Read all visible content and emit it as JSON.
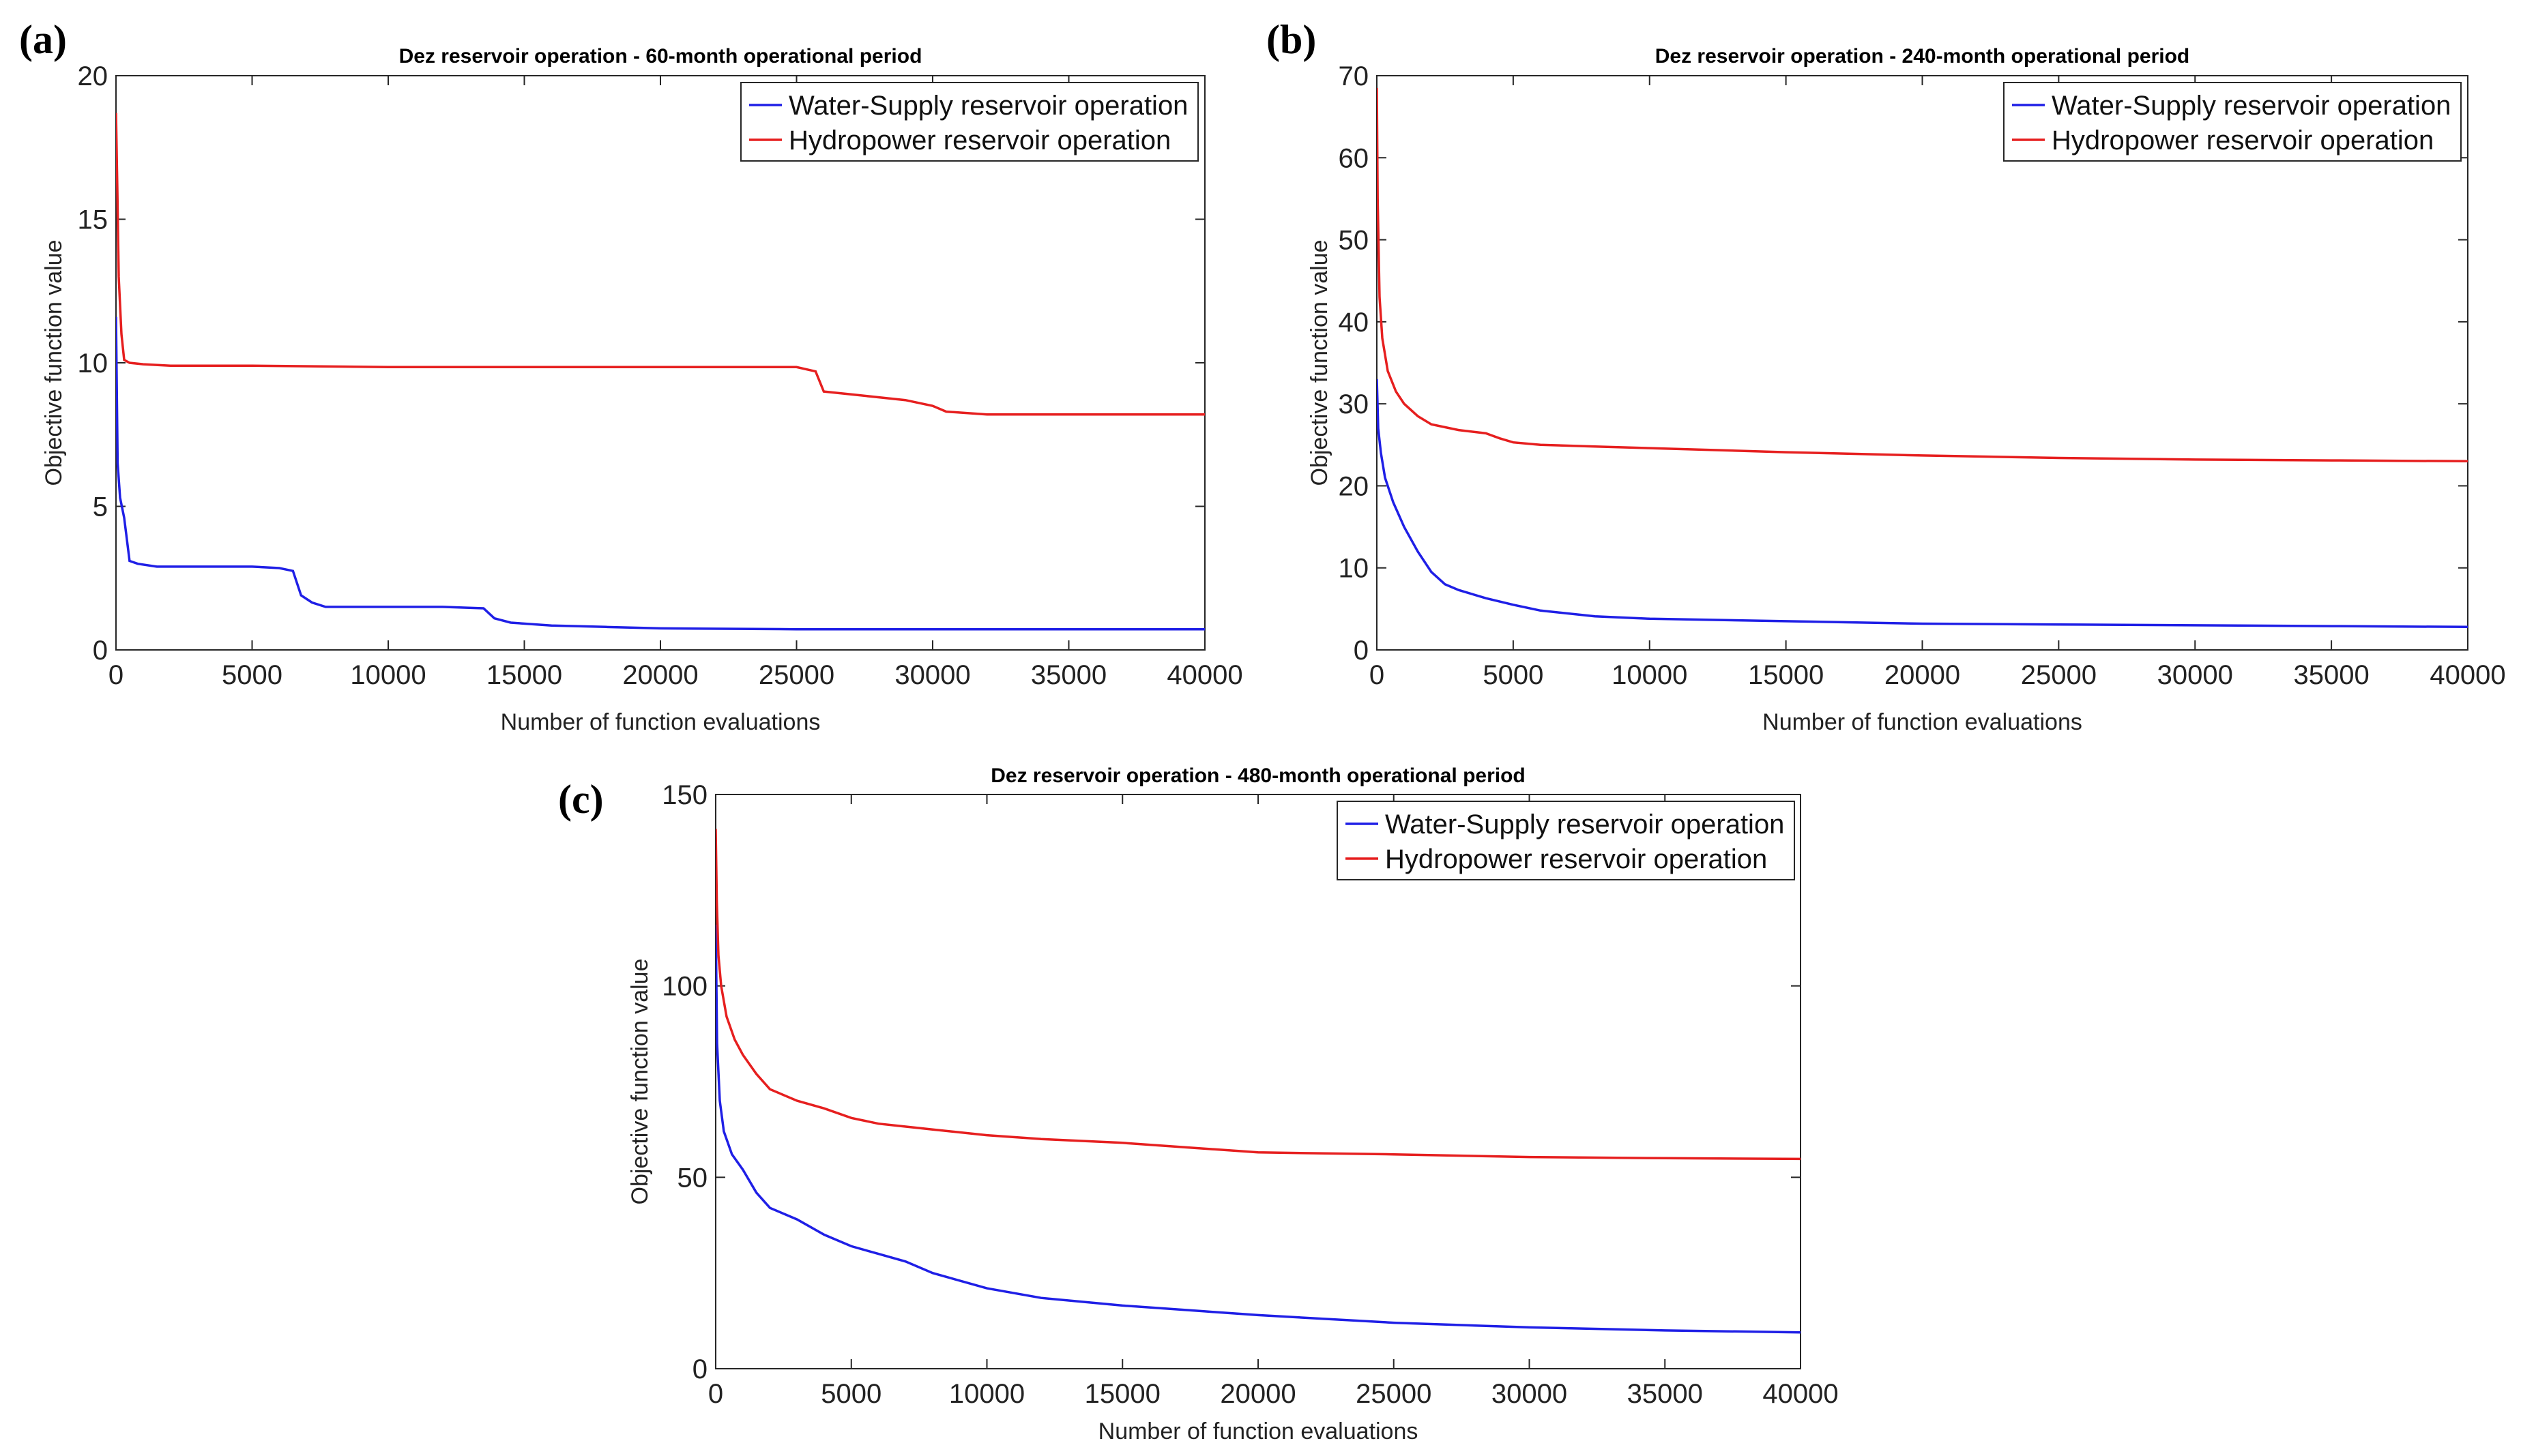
{
  "chart_data": [
    {
      "panel_label": "(a)",
      "type": "line",
      "title": "Dez reservoir operation - 60-month operational period",
      "xlabel": "Number of function evaluations",
      "ylabel": "Objective function value",
      "xlim": [
        0,
        40000
      ],
      "ylim": [
        0,
        20
      ],
      "xticks": [
        "0",
        "5000",
        "10000",
        "15000",
        "20000",
        "25000",
        "30000",
        "35000",
        "40000"
      ],
      "yticks": [
        "0",
        "5",
        "10",
        "15",
        "20"
      ],
      "legend_position": "top-right",
      "series": [
        {
          "name": "Water-Supply reservoir operation",
          "color": "#1f1fe6",
          "x": [
            0,
            60,
            150,
            300,
            500,
            800,
            1500,
            3000,
            5000,
            6000,
            6500,
            6800,
            7200,
            7700,
            9000,
            12000,
            13500,
            13900,
            14500,
            16000,
            18000,
            20000,
            25000,
            30000,
            35000,
            40000
          ],
          "y": [
            11.6,
            6.5,
            5.3,
            4.6,
            3.1,
            3.0,
            2.9,
            2.9,
            2.9,
            2.85,
            2.75,
            1.9,
            1.65,
            1.5,
            1.5,
            1.5,
            1.45,
            1.1,
            0.95,
            0.85,
            0.8,
            0.75,
            0.72,
            0.72,
            0.72,
            0.72
          ]
        },
        {
          "name": "Hydropower reservoir operation",
          "color": "#e61f1f",
          "x": [
            0,
            50,
            100,
            200,
            300,
            500,
            1000,
            2000,
            5000,
            10000,
            15000,
            20000,
            25000,
            25700,
            26000,
            27000,
            28000,
            29000,
            30000,
            30500,
            32000,
            35000,
            40000
          ],
          "y": [
            18.7,
            16.0,
            13.0,
            11.0,
            10.1,
            10.0,
            9.95,
            9.9,
            9.9,
            9.85,
            9.85,
            9.85,
            9.85,
            9.7,
            9.0,
            8.9,
            8.8,
            8.7,
            8.5,
            8.3,
            8.2,
            8.2,
            8.2
          ]
        }
      ]
    },
    {
      "panel_label": "(b)",
      "type": "line",
      "title": "Dez reservoir operation - 240-month operational period",
      "xlabel": "Number of function evaluations",
      "ylabel": "Objective function value",
      "xlim": [
        0,
        40000
      ],
      "ylim": [
        0,
        70
      ],
      "xticks": [
        "0",
        "5000",
        "10000",
        "15000",
        "20000",
        "25000",
        "30000",
        "35000",
        "40000"
      ],
      "yticks": [
        "0",
        "10",
        "20",
        "30",
        "40",
        "50",
        "60",
        "70"
      ],
      "legend_position": "top-right",
      "series": [
        {
          "name": "Water-Supply reservoir operation",
          "color": "#1f1fe6",
          "x": [
            0,
            50,
            150,
            300,
            600,
            1000,
            1500,
            2000,
            2500,
            3000,
            4000,
            5000,
            6000,
            8000,
            10000,
            15000,
            20000,
            25000,
            30000,
            35000,
            40000
          ],
          "y": [
            33,
            27,
            24,
            21,
            18,
            15,
            12,
            9.5,
            8,
            7.3,
            6.3,
            5.5,
            4.8,
            4.1,
            3.8,
            3.5,
            3.2,
            3.1,
            3.0,
            2.9,
            2.8
          ]
        },
        {
          "name": "Hydropower reservoir operation",
          "color": "#e61f1f",
          "x": [
            0,
            30,
            100,
            200,
            400,
            700,
            1000,
            1500,
            2000,
            3000,
            4000,
            4500,
            5000,
            6000,
            8000,
            10000,
            15000,
            20000,
            25000,
            30000,
            35000,
            40000
          ],
          "y": [
            68.5,
            55,
            43,
            38,
            34,
            31.5,
            30,
            28.5,
            27.5,
            26.8,
            26.4,
            25.8,
            25.3,
            25.0,
            24.8,
            24.6,
            24.1,
            23.7,
            23.4,
            23.2,
            23.1,
            23.0
          ]
        }
      ]
    },
    {
      "panel_label": "(c)",
      "type": "line",
      "title": "Dez reservoir operation - 480-month operational period",
      "xlabel": "Number of function evaluations",
      "ylabel": "Objective function value",
      "xlim": [
        0,
        40000
      ],
      "ylim": [
        0,
        150
      ],
      "xticks": [
        "0",
        "5000",
        "10000",
        "15000",
        "20000",
        "25000",
        "30000",
        "35000",
        "40000"
      ],
      "yticks": [
        "0",
        "50",
        "100",
        "150"
      ],
      "legend_position": "top-right",
      "series": [
        {
          "name": "Water-Supply reservoir operation",
          "color": "#1f1fe6",
          "x": [
            0,
            50,
            150,
            300,
            600,
            1000,
            1500,
            2000,
            3000,
            4000,
            5000,
            6000,
            7000,
            8000,
            10000,
            12000,
            15000,
            18000,
            20000,
            25000,
            30000,
            35000,
            40000
          ],
          "y": [
            116,
            85,
            70,
            62,
            56,
            52,
            46,
            42,
            39,
            35,
            32,
            30,
            28,
            25,
            21,
            18.5,
            16.5,
            15,
            14,
            12,
            10.8,
            10,
            9.5
          ]
        },
        {
          "name": "Hydropower reservoir operation",
          "color": "#e61f1f",
          "x": [
            0,
            40,
            100,
            200,
            400,
            700,
            1000,
            1500,
            2000,
            3000,
            4000,
            5000,
            6000,
            8000,
            10000,
            12000,
            15000,
            18000,
            20000,
            25000,
            30000,
            35000,
            40000
          ],
          "y": [
            141,
            122,
            108,
            100,
            92,
            86,
            82,
            77,
            73,
            70,
            68,
            65.5,
            64,
            62.5,
            61,
            60,
            59,
            57.5,
            56.5,
            56,
            55.3,
            55,
            54.8
          ]
        }
      ]
    }
  ]
}
